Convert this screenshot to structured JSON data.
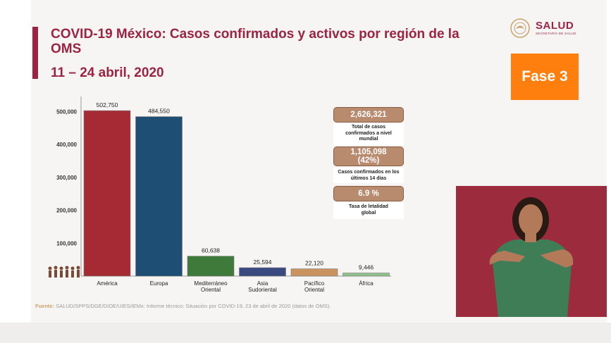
{
  "header": {
    "title": "COVID-19 México: Casos confirmados y activos por región de la OMS",
    "date_range": "11 – 24 abril, 2020"
  },
  "logo": {
    "name": "SALUD",
    "subtitle": "SECRETARÍA DE SALUD",
    "icon": "eagle-seal-icon"
  },
  "badge": {
    "label": "Fase 3",
    "color": "#ff7f0e"
  },
  "stats": [
    {
      "value": "2,626,321",
      "description": "Total de casos confirmados a nivel mundial"
    },
    {
      "value": "1,105,098 (42%)",
      "description": "Casos confirmados en los últimos 14 días"
    },
    {
      "value": "6.9 %",
      "description": "Tasa de letalidad global"
    }
  ],
  "footer": {
    "source_label": "Fuente:",
    "source_text": "SALUD/SPPS/DGE/DIOE/UIES/IEMx: Informe técnico: Situación por COVID-19, 23 de abril de 2020 (datos de OMS)."
  },
  "chart_data": {
    "type": "bar",
    "categories": [
      "América",
      "Europa",
      "Mediterráneo Oriental",
      "Asia Sudoriental",
      "Pacífico Oriental",
      "África"
    ],
    "values": [
      502750,
      484550,
      60638,
      25594,
      22120,
      9446
    ],
    "data_labels": [
      "502,750",
      "484,550",
      "60,638",
      "25,594",
      "22,120",
      "9,446"
    ],
    "colors": [
      "#a52a34",
      "#1f4e74",
      "#3e7a3a",
      "#3a4a80",
      "#c9925e",
      "#8fc28a"
    ],
    "yticks": [
      100000,
      200000,
      300000,
      400000,
      500000
    ],
    "ytick_labels": [
      "100,000",
      "200,000",
      "300,000",
      "400,000",
      "500,000"
    ],
    "ylim": [
      0,
      550000
    ],
    "grid": false,
    "legend": "none"
  }
}
